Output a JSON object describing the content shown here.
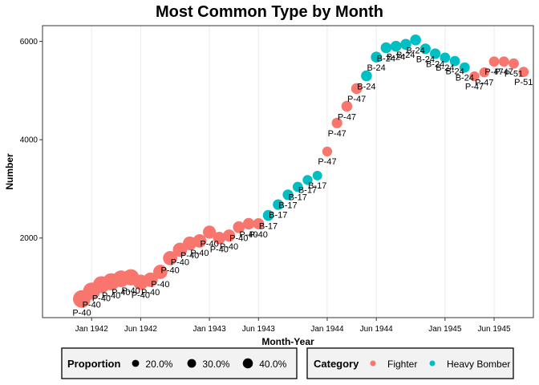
{
  "chart_data": {
    "type": "scatter",
    "title": "Most Common Type by Month",
    "xlabel": "Month-Year",
    "ylabel": "Number",
    "x_ticks": [
      "Jan 1942",
      "Jun 1942",
      "Jan 1943",
      "Jun 1943",
      "Jan 1944",
      "Jun 1944",
      "Jan 1945",
      "Jun 1945"
    ],
    "y_ticks": [
      2000,
      4000,
      6000
    ],
    "xlim": [
      "1941-08",
      "1945-10"
    ],
    "ylim": [
      380,
      6320
    ],
    "grid": "vertical",
    "categories": [
      {
        "name": "Fighter",
        "color": "#F8766D"
      },
      {
        "name": "Heavy Bomber",
        "color": "#00BFC4"
      }
    ],
    "proportion_legend": {
      "title": "Proportion",
      "entries": [
        {
          "label": "20.0%",
          "value": 0.2
        },
        {
          "label": "30.0%",
          "value": 0.3
        },
        {
          "label": "40.0%",
          "value": 0.4
        }
      ]
    },
    "category_legend_title": "Category",
    "points": [
      {
        "date": "1941-12",
        "y": 760,
        "label": "P-40",
        "category": "Fighter",
        "proportion": 0.44
      },
      {
        "date": "1942-01",
        "y": 920,
        "label": "P-40",
        "category": "Fighter",
        "proportion": 0.42
      },
      {
        "date": "1942-02",
        "y": 1050,
        "label": "P-40",
        "category": "Fighter",
        "proportion": 0.41
      },
      {
        "date": "1942-03",
        "y": 1110,
        "label": "P-40",
        "category": "Fighter",
        "proportion": 0.42
      },
      {
        "date": "1942-04",
        "y": 1170,
        "label": "P-40",
        "category": "Fighter",
        "proportion": 0.4
      },
      {
        "date": "1942-05",
        "y": 1200,
        "label": "P-40",
        "category": "Fighter",
        "proportion": 0.38
      },
      {
        "date": "1942-06",
        "y": 1100,
        "label": "P-40",
        "category": "Fighter",
        "proportion": 0.33
      },
      {
        "date": "1942-07",
        "y": 1150,
        "label": "P-40",
        "category": "Fighter",
        "proportion": 0.3
      },
      {
        "date": "1942-08",
        "y": 1310,
        "label": "P-40",
        "category": "Fighter",
        "proportion": 0.29
      },
      {
        "date": "1942-09",
        "y": 1590,
        "label": "P-40",
        "category": "Fighter",
        "proportion": 0.29
      },
      {
        "date": "1942-10",
        "y": 1760,
        "label": "P-40",
        "category": "Fighter",
        "proportion": 0.29
      },
      {
        "date": "1942-11",
        "y": 1890,
        "label": "P-40",
        "category": "Fighter",
        "proportion": 0.27
      },
      {
        "date": "1942-12",
        "y": 1940,
        "label": "P-40",
        "category": "Fighter",
        "proportion": 0.26
      },
      {
        "date": "1943-01",
        "y": 2120,
        "label": "P-40",
        "category": "Fighter",
        "proportion": 0.24
      },
      {
        "date": "1943-02",
        "y": 2000,
        "label": "P-40",
        "category": "Fighter",
        "proportion": 0.22
      },
      {
        "date": "1943-03",
        "y": 2050,
        "label": "P-40",
        "category": "Fighter",
        "proportion": 0.21
      },
      {
        "date": "1943-04",
        "y": 2220,
        "label": "P-40",
        "category": "Fighter",
        "proportion": 0.2
      },
      {
        "date": "1943-05",
        "y": 2290,
        "label": "P-40",
        "category": "Fighter",
        "proportion": 0.19
      },
      {
        "date": "1943-06",
        "y": 2290,
        "label": "P-40",
        "category": "Fighter",
        "proportion": 0.18
      },
      {
        "date": "1943-07",
        "y": 2460,
        "label": "B-17",
        "category": "Heavy Bomber",
        "proportion": 0.17
      },
      {
        "date": "1943-08",
        "y": 2680,
        "label": "B-17",
        "category": "Heavy Bomber",
        "proportion": 0.16
      },
      {
        "date": "1943-09",
        "y": 2880,
        "label": "B-17",
        "category": "Heavy Bomber",
        "proportion": 0.16
      },
      {
        "date": "1943-10",
        "y": 3040,
        "label": "B-17",
        "category": "Heavy Bomber",
        "proportion": 0.15
      },
      {
        "date": "1943-11",
        "y": 3180,
        "label": "B-17",
        "category": "Heavy Bomber",
        "proportion": 0.14
      },
      {
        "date": "1943-12",
        "y": 3270,
        "label": "B-17",
        "category": "Heavy Bomber",
        "proportion": 0.13
      },
      {
        "date": "1944-01",
        "y": 3760,
        "label": "P-47",
        "category": "Fighter",
        "proportion": 0.14
      },
      {
        "date": "1944-02",
        "y": 4340,
        "label": "P-47",
        "category": "Fighter",
        "proportion": 0.16
      },
      {
        "date": "1944-03",
        "y": 4680,
        "label": "P-47",
        "category": "Fighter",
        "proportion": 0.17
      },
      {
        "date": "1944-04",
        "y": 5040,
        "label": "P-47",
        "category": "Fighter",
        "proportion": 0.17
      },
      {
        "date": "1944-05",
        "y": 5300,
        "label": "B-24",
        "category": "Heavy Bomber",
        "proportion": 0.17
      },
      {
        "date": "1944-06",
        "y": 5680,
        "label": "B-24",
        "category": "Heavy Bomber",
        "proportion": 0.17
      },
      {
        "date": "1944-07",
        "y": 5870,
        "label": "B-24",
        "category": "Heavy Bomber",
        "proportion": 0.17
      },
      {
        "date": "1944-08",
        "y": 5900,
        "label": "B-24",
        "category": "Heavy Bomber",
        "proportion": 0.17
      },
      {
        "date": "1944-09",
        "y": 5940,
        "label": "B-24",
        "category": "Heavy Bomber",
        "proportion": 0.17
      },
      {
        "date": "1944-10",
        "y": 6030,
        "label": "B-24",
        "category": "Heavy Bomber",
        "proportion": 0.17
      },
      {
        "date": "1944-11",
        "y": 5850,
        "label": "B-24",
        "category": "Heavy Bomber",
        "proportion": 0.16
      },
      {
        "date": "1944-12",
        "y": 5750,
        "label": "B-24",
        "category": "Heavy Bomber",
        "proportion": 0.16
      },
      {
        "date": "1945-01",
        "y": 5670,
        "label": "B-24",
        "category": "Heavy Bomber",
        "proportion": 0.15
      },
      {
        "date": "1945-02",
        "y": 5600,
        "label": "B-24",
        "category": "Heavy Bomber",
        "proportion": 0.15
      },
      {
        "date": "1945-03",
        "y": 5470,
        "label": "B-24",
        "category": "Heavy Bomber",
        "proportion": 0.15
      },
      {
        "date": "1945-04",
        "y": 5290,
        "label": "P-47",
        "category": "Fighter",
        "proportion": 0.14
      },
      {
        "date": "1945-05",
        "y": 5370,
        "label": "P-47",
        "category": "Fighter",
        "proportion": 0.14
      },
      {
        "date": "1945-06",
        "y": 5590,
        "label": "P-47",
        "category": "Fighter",
        "proportion": 0.15
      },
      {
        "date": "1945-07",
        "y": 5590,
        "label": "P-47",
        "category": "Fighter",
        "proportion": 0.15
      },
      {
        "date": "1945-08",
        "y": 5550,
        "label": "P-51",
        "category": "Fighter",
        "proportion": 0.15
      },
      {
        "date": "1945-09",
        "y": 5380,
        "label": "P-51",
        "category": "Fighter",
        "proportion": 0.15
      }
    ]
  }
}
